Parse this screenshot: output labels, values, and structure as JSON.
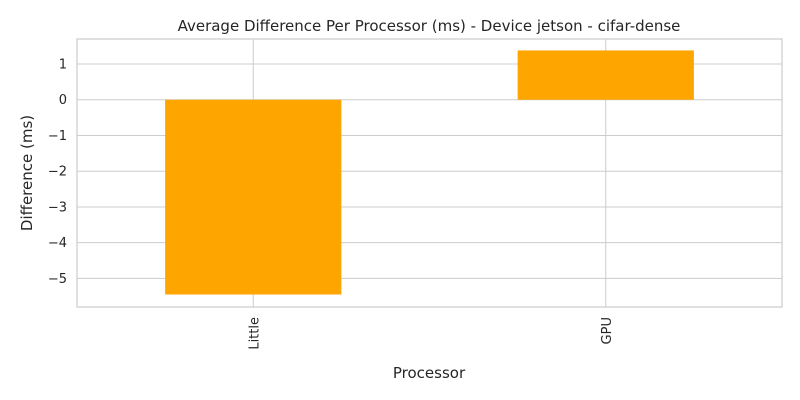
{
  "chart_data": {
    "type": "bar",
    "title": "Average Difference Per Processor (ms) - Device jetson - cifar-dense",
    "xlabel": "Processor",
    "ylabel": "Difference (ms)",
    "categories": [
      "Little",
      "GPU"
    ],
    "values": [
      -5.45,
      1.38
    ],
    "ylim": [
      -5.8,
      1.7
    ],
    "yticks": [
      -5,
      -4,
      -3,
      -2,
      -1,
      0,
      1
    ],
    "ytick_labels": [
      "−5",
      "−4",
      "−3",
      "−2",
      "−1",
      "0",
      "1"
    ],
    "grid": true,
    "bar_color": "#ffa500",
    "x_tick_rotation": "vertical"
  }
}
